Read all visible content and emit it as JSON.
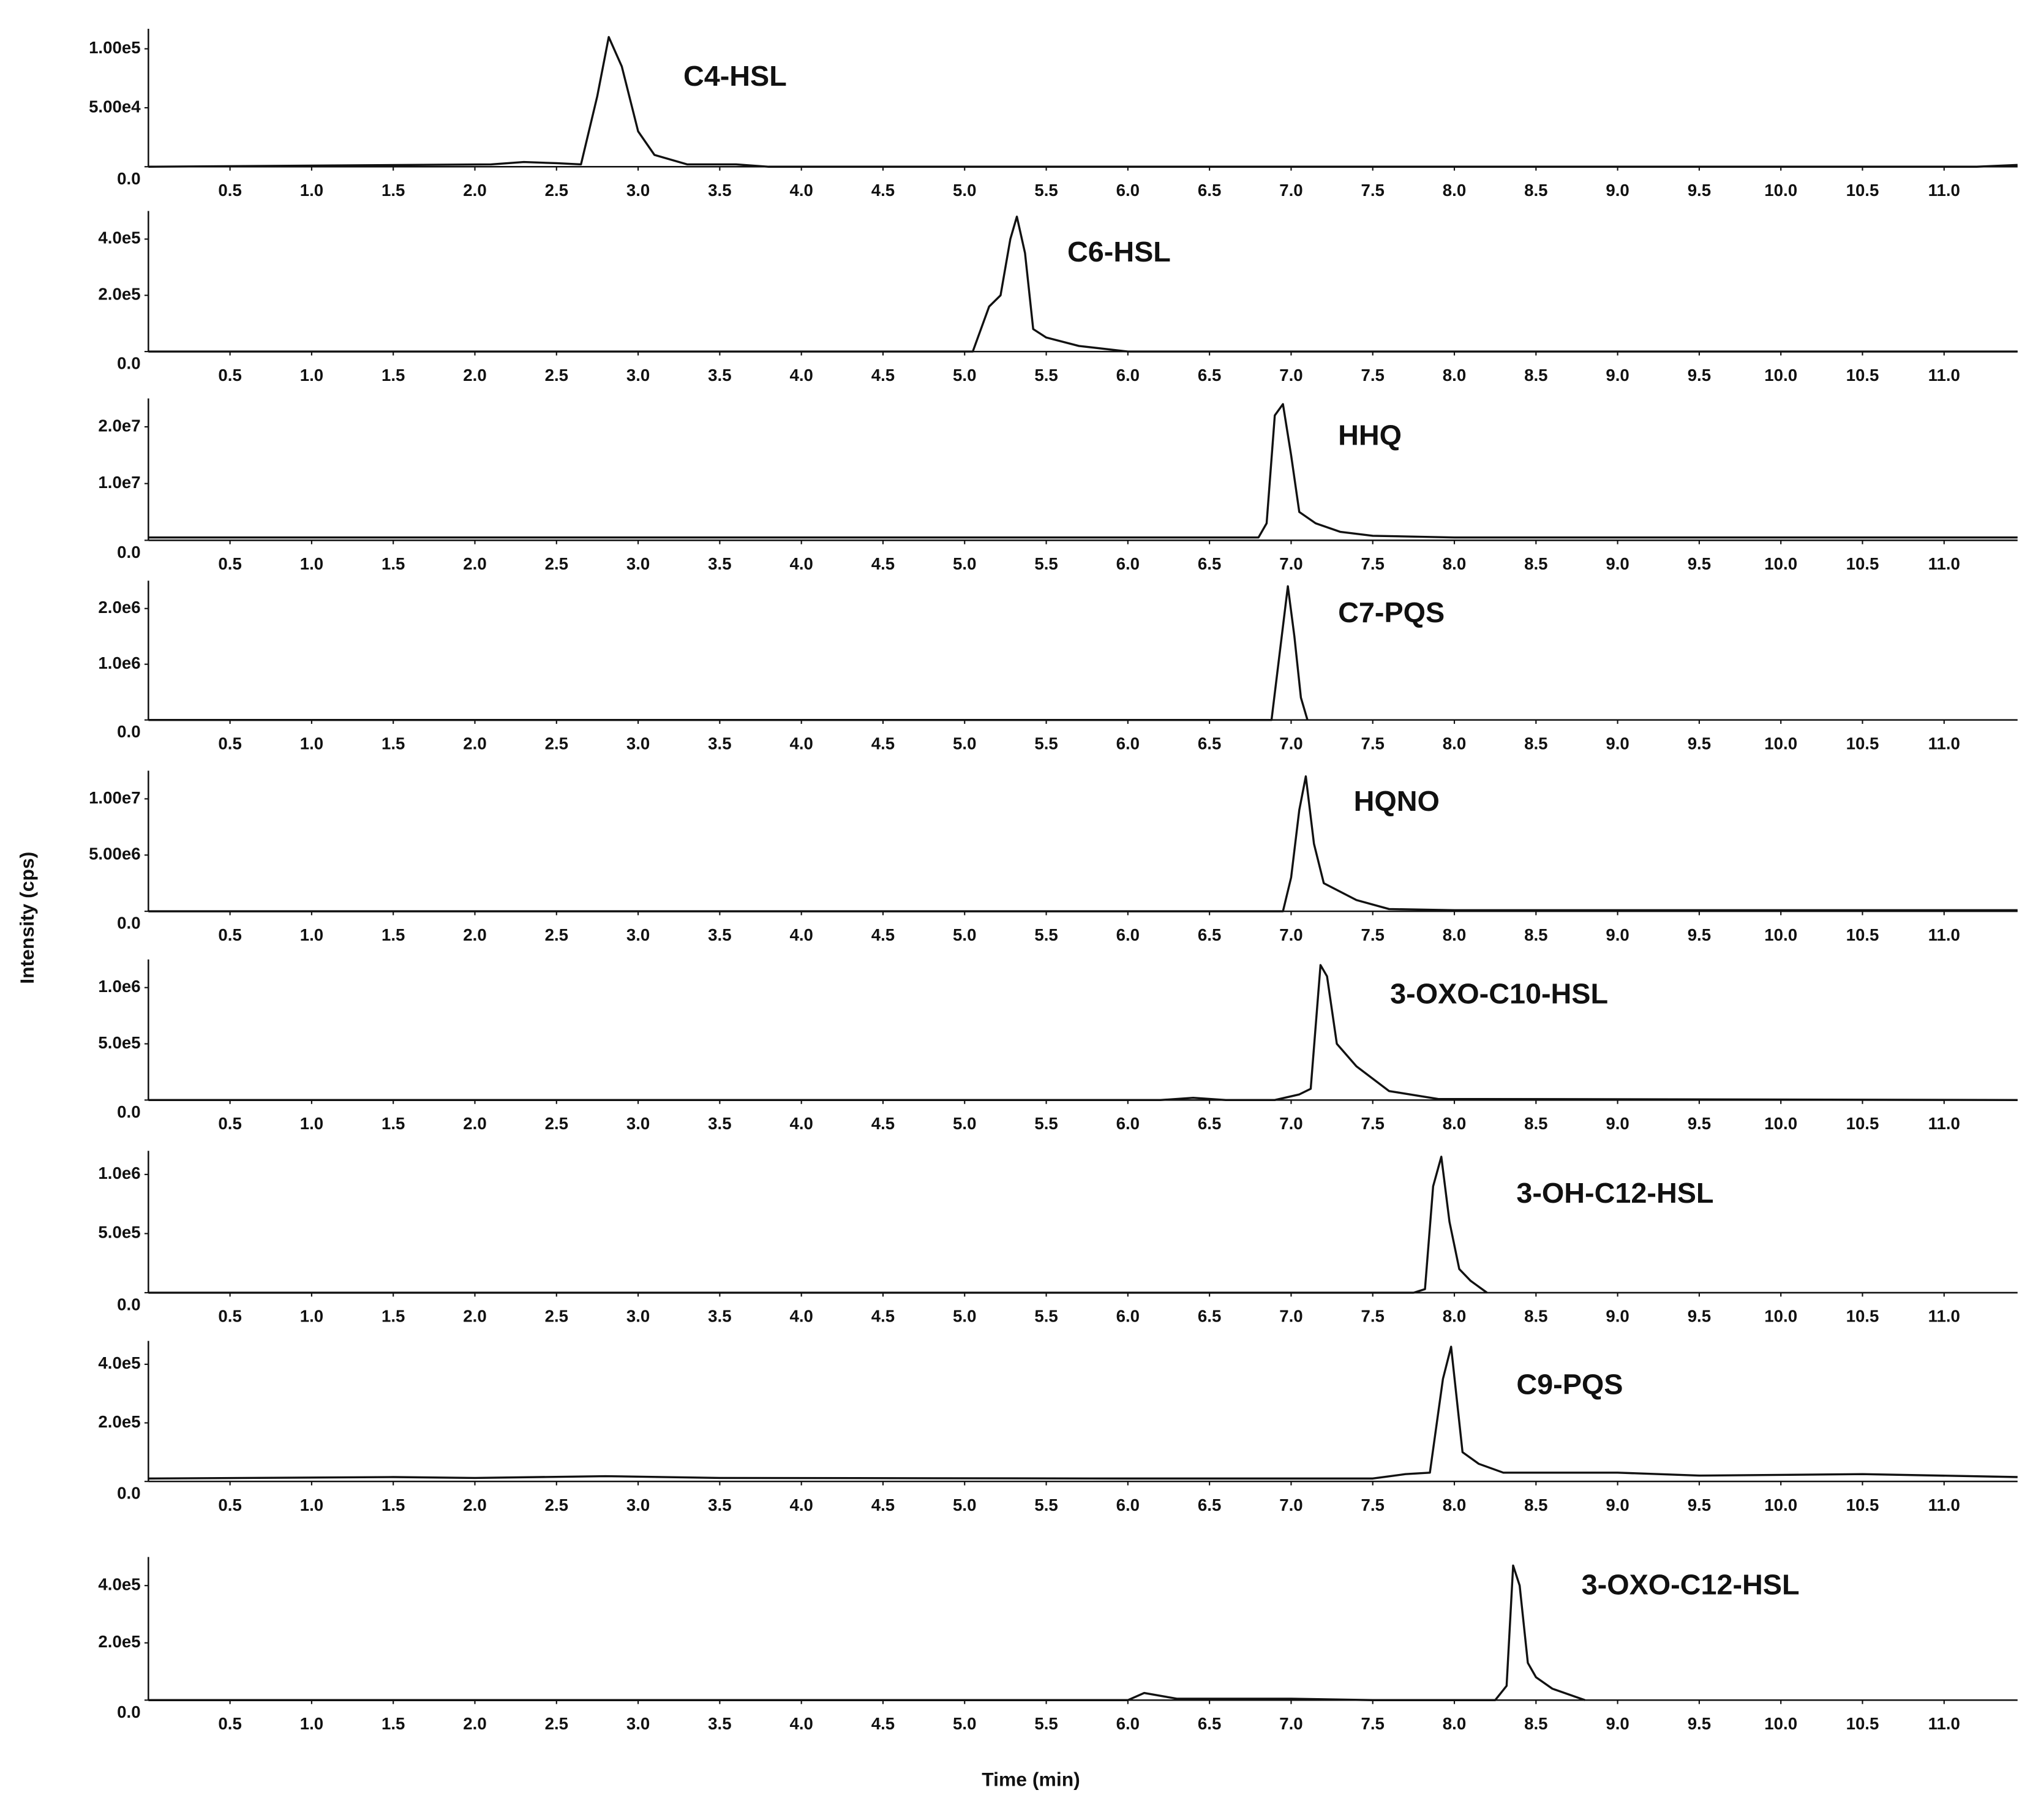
{
  "xlabel": "Time (min)",
  "ylabel": "Intensity (cps)",
  "chart_data": [
    {
      "type": "line",
      "label": "C4-HSL",
      "color": "#111111",
      "x": [
        0,
        2.1,
        2.3,
        2.5,
        2.65,
        2.75,
        2.82,
        2.9,
        3.0,
        3.1,
        3.3,
        3.6,
        3.8,
        11.2,
        11.45
      ],
      "y": [
        0,
        2000,
        4000,
        3000,
        2000,
        60000,
        110000,
        85000,
        30000,
        10000,
        2000,
        2000,
        0,
        0,
        1500
      ],
      "xlim": [
        0,
        11.45
      ],
      "ylim": [
        0,
        117000
      ],
      "xticks": [
        0.5,
        {
          "value": 1,
          "label": "1.0"
        },
        1.5,
        {
          "value": 2,
          "label": "2.0"
        },
        2.5,
        {
          "value": 3,
          "label": "3.0"
        },
        3.5,
        {
          "value": 4,
          "label": "4.0"
        },
        4.5,
        {
          "value": 5,
          "label": "5.0"
        },
        5.5,
        {
          "value": 6,
          "label": "6.0"
        },
        6.5,
        {
          "value": 7,
          "label": "7.0"
        },
        7.5,
        {
          "value": 8,
          "label": "8.0"
        },
        8.5,
        {
          "value": 9,
          "label": "9.0"
        },
        9.5,
        {
          "value": 10,
          "label": "10.0"
        },
        10.5,
        {
          "value": 11,
          "label": "11.0"
        }
      ],
      "yticks": [
        {
          "value": 0,
          "label": "0.0"
        },
        {
          "value": 50000,
          "label": "5.00e4"
        },
        {
          "value": 100000,
          "label": "1.00e5"
        }
      ]
    },
    {
      "type": "line",
      "label": "C6-HSL",
      "color": "#111111",
      "x": [
        0,
        5.05,
        5.15,
        5.22,
        5.28,
        5.32,
        5.37,
        5.42,
        5.5,
        5.7,
        6.0,
        11.45
      ],
      "y": [
        0,
        0,
        160000,
        200000,
        400000,
        480000,
        350000,
        80000,
        50000,
        20000,
        0,
        0
      ],
      "xlim": [
        0,
        11.45
      ],
      "ylim": [
        0,
        500000
      ],
      "xticks": [
        0.5,
        {
          "value": 1,
          "label": "1.0"
        },
        1.5,
        {
          "value": 2,
          "label": "2.0"
        },
        2.5,
        {
          "value": 3,
          "label": "3.0"
        },
        3.5,
        {
          "value": 4,
          "label": "4.0"
        },
        4.5,
        {
          "value": 5,
          "label": "5.0"
        },
        5.5,
        {
          "value": 6,
          "label": "6.0"
        },
        6.5,
        {
          "value": 7,
          "label": "7.0"
        },
        7.5,
        {
          "value": 8,
          "label": "8.0"
        },
        8.5,
        {
          "value": 9,
          "label": "9.0"
        },
        9.5,
        {
          "value": 10,
          "label": "10.0"
        },
        10.5,
        {
          "value": 11,
          "label": "11.0"
        }
      ],
      "yticks": [
        {
          "value": 0,
          "label": "0.0"
        },
        {
          "value": 200000,
          "label": "2.0e5"
        },
        {
          "value": 400000,
          "label": "4.0e5"
        }
      ]
    },
    {
      "type": "line",
      "label": "HHQ",
      "color": "#111111",
      "x": [
        0,
        6.8,
        6.85,
        6.9,
        6.95,
        7.0,
        7.05,
        7.15,
        7.3,
        7.5,
        8.0,
        11.45
      ],
      "y": [
        500000,
        500000,
        3000000,
        22000000,
        24000000,
        15000000,
        5000000,
        3000000,
        1500000,
        800000,
        500000,
        500000
      ],
      "xlim": [
        0,
        11.45
      ],
      "ylim": [
        0,
        25000000
      ],
      "xticks": [
        0.5,
        {
          "value": 1,
          "label": "1.0"
        },
        1.5,
        {
          "value": 2,
          "label": "2.0"
        },
        2.5,
        {
          "value": 3,
          "label": "3.0"
        },
        3.5,
        {
          "value": 4,
          "label": "4.0"
        },
        4.5,
        {
          "value": 5,
          "label": "5.0"
        },
        5.5,
        {
          "value": 6,
          "label": "6.0"
        },
        6.5,
        {
          "value": 7,
          "label": "7.0"
        },
        7.5,
        {
          "value": 8,
          "label": "8.0"
        },
        8.5,
        {
          "value": 9,
          "label": "9.0"
        },
        9.5,
        {
          "value": 10,
          "label": "10.0"
        },
        10.5,
        {
          "value": 11,
          "label": "11.0"
        }
      ],
      "yticks": [
        {
          "value": 0,
          "label": "0.0"
        },
        {
          "value": 10000000,
          "label": "1.0e7"
        },
        {
          "value": 20000000,
          "label": "2.0e7"
        }
      ]
    },
    {
      "type": "line",
      "label": "C7-PQS",
      "color": "#111111",
      "x": [
        0,
        6.88,
        6.93,
        6.98,
        7.02,
        7.06,
        7.1
      ],
      "y": [
        0,
        0,
        1200000,
        2400000,
        1500000,
        400000,
        0
      ],
      "xlim": [
        0,
        11.45
      ],
      "ylim": [
        0,
        2500000
      ],
      "xticks": [
        0.5,
        {
          "value": 1,
          "label": "1.0"
        },
        1.5,
        {
          "value": 2,
          "label": "2.0"
        },
        2.5,
        {
          "value": 3,
          "label": "3.0"
        },
        3.5,
        {
          "value": 4,
          "label": "4.0"
        },
        4.5,
        {
          "value": 5,
          "label": "5.0"
        },
        5.5,
        {
          "value": 6,
          "label": "6.0"
        },
        6.5,
        {
          "value": 7,
          "label": "7.0"
        },
        7.5,
        {
          "value": 8,
          "label": "8.0"
        },
        8.5,
        {
          "value": 9,
          "label": "9.0"
        },
        9.5,
        {
          "value": 10,
          "label": "10.0"
        },
        10.5,
        {
          "value": 11,
          "label": "11.0"
        }
      ],
      "yticks": [
        {
          "value": 0,
          "label": "0.0"
        },
        {
          "value": 1000000,
          "label": "1.0e6"
        },
        {
          "value": 2000000,
          "label": "2.0e6"
        }
      ]
    },
    {
      "type": "line",
      "label": "HQNO",
      "color": "#111111",
      "x": [
        0,
        6.95,
        7.0,
        7.05,
        7.09,
        7.14,
        7.2,
        7.4,
        7.6,
        8.0,
        11.45
      ],
      "y": [
        0,
        0,
        3000000,
        9000000,
        12000000,
        6000000,
        2500000,
        1000000,
        200000,
        100000,
        100000
      ],
      "xlim": [
        0,
        11.45
      ],
      "ylim": [
        0,
        12500000
      ],
      "xticks": [
        0.5,
        {
          "value": 1,
          "label": "1.0"
        },
        1.5,
        {
          "value": 2,
          "label": "2.0"
        },
        2.5,
        {
          "value": 3,
          "label": "3.0"
        },
        3.5,
        {
          "value": 4,
          "label": "4.0"
        },
        4.5,
        {
          "value": 5,
          "label": "5.0"
        },
        5.5,
        {
          "value": 6,
          "label": "6.0"
        },
        6.5,
        {
          "value": 7,
          "label": "7.0"
        },
        7.5,
        {
          "value": 8,
          "label": "8.0"
        },
        8.5,
        {
          "value": 9,
          "label": "9.0"
        },
        9.5,
        {
          "value": 10,
          "label": "10.0"
        },
        10.5,
        {
          "value": 11,
          "label": "11.0"
        }
      ],
      "yticks": [
        {
          "value": 0,
          "label": "0.0"
        },
        {
          "value": 5000000,
          "label": "5.00e6"
        },
        {
          "value": 10000000,
          "label": "1.00e7"
        }
      ]
    },
    {
      "type": "line",
      "label": "3-OXO-C10-HSL",
      "color": "#111111",
      "x": [
        0,
        6.2,
        6.4,
        6.6,
        6.9,
        7.05,
        7.12,
        7.18,
        7.22,
        7.28,
        7.4,
        7.6,
        7.9,
        11.45
      ],
      "y": [
        0,
        0,
        20000,
        0,
        0,
        50000,
        100000,
        1200000,
        1100000,
        500000,
        300000,
        80000,
        10000,
        0
      ],
      "xlim": [
        0,
        11.45
      ],
      "ylim": [
        0,
        1250000
      ],
      "xticks": [
        0.5,
        {
          "value": 1,
          "label": "1.0"
        },
        1.5,
        {
          "value": 2,
          "label": "2.0"
        },
        2.5,
        {
          "value": 3,
          "label": "3.0"
        },
        3.5,
        {
          "value": 4,
          "label": "4.0"
        },
        4.5,
        {
          "value": 5,
          "label": "5.0"
        },
        5.5,
        {
          "value": 6,
          "label": "6.0"
        },
        6.5,
        {
          "value": 7,
          "label": "7.0"
        },
        7.5,
        {
          "value": 8,
          "label": "8.0"
        },
        8.5,
        {
          "value": 9,
          "label": "9.0"
        },
        9.5,
        {
          "value": 10,
          "label": "10.0"
        },
        10.5,
        {
          "value": 11,
          "label": "11.0"
        }
      ],
      "yticks": [
        {
          "value": 0,
          "label": "0.0"
        },
        {
          "value": 500000,
          "label": "5.0e5"
        },
        {
          "value": 1000000,
          "label": "1.0e6"
        }
      ]
    },
    {
      "type": "line",
      "label": "3-OH-C12-HSL",
      "color": "#111111",
      "x": [
        0,
        7.75,
        7.82,
        7.87,
        7.92,
        7.97,
        8.03,
        8.1,
        8.2
      ],
      "y": [
        0,
        0,
        30000,
        900000,
        1150000,
        600000,
        200000,
        100000,
        0
      ],
      "xlim": [
        0,
        11.45
      ],
      "ylim": [
        0,
        1200000
      ],
      "xticks": [
        0.5,
        {
          "value": 1,
          "label": "1.0"
        },
        1.5,
        {
          "value": 2,
          "label": "2.0"
        },
        2.5,
        {
          "value": 3,
          "label": "3.0"
        },
        3.5,
        {
          "value": 4,
          "label": "4.0"
        },
        4.5,
        {
          "value": 5,
          "label": "5.0"
        },
        5.5,
        {
          "value": 6,
          "label": "6.0"
        },
        6.5,
        {
          "value": 7,
          "label": "7.0"
        },
        7.5,
        {
          "value": 8,
          "label": "8.0"
        },
        8.5,
        {
          "value": 9,
          "label": "9.0"
        },
        9.5,
        {
          "value": 10,
          "label": "10.0"
        },
        10.5,
        {
          "value": 11,
          "label": "11.0"
        }
      ],
      "yticks": [
        {
          "value": 0,
          "label": "0.0"
        },
        {
          "value": 500000,
          "label": "5.0e5"
        },
        {
          "value": 1000000,
          "label": "1.0e6"
        }
      ]
    },
    {
      "type": "line",
      "label": "C9-PQS",
      "color": "#111111",
      "x": [
        0,
        1.5,
        2.0,
        2.8,
        3.5,
        6.0,
        7.5,
        7.7,
        7.85,
        7.93,
        7.98,
        8.05,
        8.15,
        8.3,
        8.5,
        9.0,
        9.5,
        10.5,
        11.45
      ],
      "y": [
        10000,
        15000,
        12000,
        18000,
        12000,
        10000,
        10000,
        25000,
        30000,
        350000,
        460000,
        100000,
        60000,
        30000,
        30000,
        30000,
        20000,
        25000,
        15000
      ],
      "xlim": [
        0,
        11.45
      ],
      "ylim": [
        0,
        480000
      ],
      "xticks": [
        0.5,
        {
          "value": 1,
          "label": "1.0"
        },
        1.5,
        {
          "value": 2,
          "label": "2.0"
        },
        2.5,
        {
          "value": 3,
          "label": "3.0"
        },
        3.5,
        {
          "value": 4,
          "label": "4.0"
        },
        4.5,
        {
          "value": 5,
          "label": "5.0"
        },
        5.5,
        {
          "value": 6,
          "label": "6.0"
        },
        6.5,
        {
          "value": 7,
          "label": "7.0"
        },
        7.5,
        {
          "value": 8,
          "label": "8.0"
        },
        8.5,
        {
          "value": 9,
          "label": "9.0"
        },
        9.5,
        {
          "value": 10,
          "label": "10.0"
        },
        10.5,
        {
          "value": 11,
          "label": "11.0"
        }
      ],
      "yticks": [
        {
          "value": 0,
          "label": "0.0"
        },
        {
          "value": 200000,
          "label": "2.0e5"
        },
        {
          "value": 400000,
          "label": "4.0e5"
        }
      ]
    },
    {
      "type": "line",
      "label": "3-OXO-C12-HSL",
      "color": "#111111",
      "x": [
        0,
        6.0,
        6.1,
        6.3,
        7.0,
        7.5,
        8.25,
        8.32,
        8.36,
        8.4,
        8.45,
        8.5,
        8.6,
        8.8
      ],
      "y": [
        0,
        0,
        25000,
        5000,
        5000,
        0,
        0,
        50000,
        470000,
        400000,
        130000,
        80000,
        40000,
        0
      ],
      "xlim": [
        0,
        11.45
      ],
      "ylim": [
        0,
        500000
      ],
      "xticks": [
        0.5,
        {
          "value": 1,
          "label": "1.0"
        },
        1.5,
        {
          "value": 2,
          "label": "2.0"
        },
        2.5,
        {
          "value": 3,
          "label": "3.0"
        },
        3.5,
        {
          "value": 4,
          "label": "4.0"
        },
        4.5,
        {
          "value": 5,
          "label": "5.0"
        },
        5.5,
        {
          "value": 6,
          "label": "6.0"
        },
        6.5,
        {
          "value": 7,
          "label": "7.0"
        },
        7.5,
        {
          "value": 8,
          "label": "8.0"
        },
        8.5,
        {
          "value": 9,
          "label": "9.0"
        },
        9.5,
        {
          "value": 10,
          "label": "10.0"
        },
        10.5,
        {
          "value": 11,
          "label": "11.0"
        }
      ],
      "yticks": [
        {
          "value": 0,
          "label": "0.0"
        },
        {
          "value": 200000,
          "label": "2.0e5"
        },
        {
          "value": 400000,
          "label": "4.0e5"
        }
      ]
    }
  ]
}
